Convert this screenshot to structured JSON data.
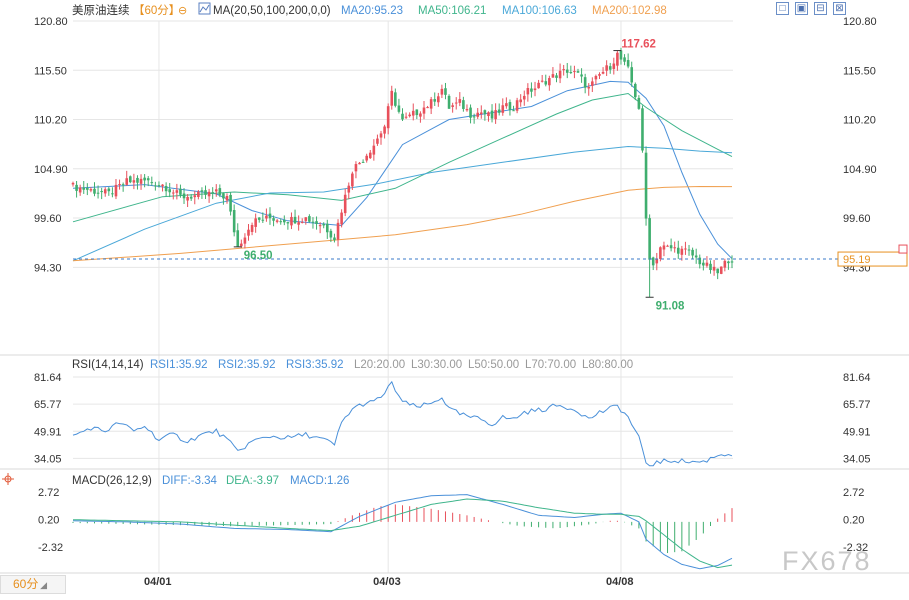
{
  "header": {
    "instrument": "美原油连续",
    "timeframe": "【60分】",
    "ma_label": "MA(20,50,100,200,0,0)",
    "ma_values": [
      {
        "text": "MA20:95.23",
        "color": "#4a90d9"
      },
      {
        "text": "MA50:106.21",
        "color": "#3fb58c"
      },
      {
        "text": "MA100:106.63",
        "color": "#4aa8d8"
      },
      {
        "text": "MA200:102.98",
        "color": "#f0a050"
      }
    ]
  },
  "window_controls": [
    "□",
    "▣",
    "⊟",
    "⊠"
  ],
  "timeframe_button": "60分",
  "watermark": "FX678",
  "colors": {
    "up": "#e8505b",
    "down": "#3fae6e",
    "grid": "#e6e6e6",
    "axis_text": "#333333",
    "price_line": "#3a78c8",
    "last_price_box": "#e7901f"
  },
  "chart_data": [
    {
      "type": "candlestick",
      "panel": "price",
      "ylim": [
        91.0,
        120.8
      ],
      "y_ticks": [
        "120.80",
        "115.50",
        "110.20",
        "104.90",
        "99.60",
        "94.30"
      ],
      "x_labels": [
        {
          "label": "04/01",
          "bar": 24
        },
        {
          "label": "04/03",
          "bar": 88
        },
        {
          "label": "04/08",
          "bar": 153
        }
      ],
      "bar_count": 185,
      "keyframes": [
        [
          0,
          103.0
        ],
        [
          5,
          102.6
        ],
        [
          10,
          102.2
        ],
        [
          15,
          103.5
        ],
        [
          20,
          103.6
        ],
        [
          25,
          103.2
        ],
        [
          30,
          101.9
        ],
        [
          35,
          102.0
        ],
        [
          40,
          102.3
        ],
        [
          43,
          101.8
        ],
        [
          46,
          96.5
        ],
        [
          50,
          99.2
        ],
        [
          55,
          99.6
        ],
        [
          60,
          99.4
        ],
        [
          65,
          99.6
        ],
        [
          70,
          98.8
        ],
        [
          73,
          97.5
        ],
        [
          75,
          100.5
        ],
        [
          78,
          104.8
        ],
        [
          81,
          106.0
        ],
        [
          84,
          107.5
        ],
        [
          87,
          109.5
        ],
        [
          89,
          113.0
        ],
        [
          92,
          110.0
        ],
        [
          96,
          111.0
        ],
        [
          100,
          112.0
        ],
        [
          103,
          113.5
        ],
        [
          105,
          111.5
        ],
        [
          108,
          112.0
        ],
        [
          111,
          110.8
        ],
        [
          114,
          111.0
        ],
        [
          117,
          110.4
        ],
        [
          120,
          111.5
        ],
        [
          123,
          111.6
        ],
        [
          126,
          113.0
        ],
        [
          129,
          113.6
        ],
        [
          132,
          114.4
        ],
        [
          135,
          115.0
        ],
        [
          138,
          115.5
        ],
        [
          141,
          115.0
        ],
        [
          144,
          113.5
        ],
        [
          147,
          115.0
        ],
        [
          150,
          116.0
        ],
        [
          152,
          117.2
        ],
        [
          155,
          115.5
        ],
        [
          158,
          111.5
        ],
        [
          159,
          106.5
        ],
        [
          160,
          99.5
        ],
        [
          161,
          95.5
        ],
        [
          162,
          94.5
        ],
        [
          164,
          96.5
        ],
        [
          168,
          96.3
        ],
        [
          172,
          95.9
        ],
        [
          176,
          94.6
        ],
        [
          180,
          93.7
        ],
        [
          183,
          95.2
        ],
        [
          184,
          95.19
        ]
      ],
      "high_label": {
        "value": "117.62",
        "bar": 152
      },
      "low_labels": [
        {
          "value": "96.50",
          "bar": 46
        },
        {
          "value": "91.08",
          "bar": 161
        }
      ],
      "last_price": "95.19",
      "series": [
        {
          "name": "MA20",
          "color": "#4a90d9",
          "points": [
            [
              0,
              102.8
            ],
            [
              20,
              103.2
            ],
            [
              40,
              102.2
            ],
            [
              50,
              100.4
            ],
            [
              60,
              99.3
            ],
            [
              75,
              98.8
            ],
            [
              82,
              101.8
            ],
            [
              92,
              107.5
            ],
            [
              105,
              110.2
            ],
            [
              118,
              111.0
            ],
            [
              128,
              111.6
            ],
            [
              138,
              113.3
            ],
            [
              150,
              114.3
            ],
            [
              155,
              114.2
            ],
            [
              160,
              112.5
            ],
            [
              165,
              109.5
            ],
            [
              170,
              104.5
            ],
            [
              175,
              100.0
            ],
            [
              180,
              96.8
            ],
            [
              184,
              95.23
            ]
          ]
        },
        {
          "name": "MA50",
          "color": "#3fb58c",
          "points": [
            [
              0,
              99.2
            ],
            [
              25,
              101.9
            ],
            [
              45,
              102.4
            ],
            [
              60,
              102.1
            ],
            [
              75,
              101.5
            ],
            [
              90,
              102.8
            ],
            [
              105,
              105.6
            ],
            [
              120,
              108.2
            ],
            [
              135,
              110.8
            ],
            [
              145,
              112.3
            ],
            [
              155,
              113.0
            ],
            [
              160,
              111.5
            ],
            [
              170,
              109.0
            ],
            [
              180,
              107.0
            ],
            [
              184,
              106.21
            ]
          ]
        },
        {
          "name": "MA100",
          "color": "#4aa8d8",
          "points": [
            [
              0,
              95.0
            ],
            [
              20,
              98.4
            ],
            [
              40,
              101.2
            ],
            [
              55,
              102.3
            ],
            [
              70,
              102.4
            ],
            [
              85,
              103.3
            ],
            [
              100,
              104.5
            ],
            [
              120,
              105.6
            ],
            [
              140,
              106.7
            ],
            [
              155,
              107.3
            ],
            [
              165,
              107.1
            ],
            [
              175,
              106.8
            ],
            [
              184,
              106.63
            ]
          ]
        },
        {
          "name": "MA200",
          "color": "#f0a050",
          "points": [
            [
              0,
              95.0
            ],
            [
              30,
              95.8
            ],
            [
              60,
              96.8
            ],
            [
              90,
              97.8
            ],
            [
              110,
              98.9
            ],
            [
              125,
              100.0
            ],
            [
              140,
              101.4
            ],
            [
              155,
              102.6
            ],
            [
              165,
              102.9
            ],
            [
              175,
              103.0
            ],
            [
              184,
              102.98
            ]
          ]
        }
      ]
    },
    {
      "type": "line",
      "panel": "rsi",
      "title": "RSI(14,14,14)",
      "legend": [
        {
          "text": "RSI1:35.92",
          "color": "#4a90d9"
        },
        {
          "text": "RSI2:35.92",
          "color": "#4a90d9"
        },
        {
          "text": "RSI3:35.92",
          "color": "#4a90d9"
        },
        {
          "text": "L20:20.00",
          "color": "#999999"
        },
        {
          "text": "L30:30.00",
          "color": "#999999"
        },
        {
          "text": "L50:50.00",
          "color": "#999999"
        },
        {
          "text": "L70:70.00",
          "color": "#999999"
        },
        {
          "text": "L80:80.00",
          "color": "#999999"
        }
      ],
      "ylim": [
        29.0,
        84.0
      ],
      "y_ticks": [
        "81.64",
        "65.77",
        "49.91",
        "34.05"
      ],
      "series": [
        {
          "name": "RSI",
          "color": "#4a90d9",
          "points": [
            [
              0,
              47
            ],
            [
              5,
              52
            ],
            [
              9,
              50
            ],
            [
              13,
              55
            ],
            [
              17,
              50
            ],
            [
              20,
              53
            ],
            [
              24,
              45
            ],
            [
              28,
              48
            ],
            [
              32,
              44
            ],
            [
              36,
              48
            ],
            [
              40,
              50
            ],
            [
              43,
              45
            ],
            [
              46,
              38
            ],
            [
              50,
              44
            ],
            [
              55,
              47
            ],
            [
              60,
              46
            ],
            [
              65,
              48
            ],
            [
              70,
              45
            ],
            [
              73,
              42
            ],
            [
              75,
              55
            ],
            [
              78,
              63
            ],
            [
              81,
              66
            ],
            [
              84,
              67
            ],
            [
              87,
              72
            ],
            [
              89,
              78
            ],
            [
              92,
              67
            ],
            [
              96,
              64
            ],
            [
              100,
              66
            ],
            [
              103,
              70
            ],
            [
              105,
              63
            ],
            [
              108,
              60
            ],
            [
              111,
              58
            ],
            [
              114,
              57
            ],
            [
              117,
              54
            ],
            [
              120,
              58
            ],
            [
              123,
              57
            ],
            [
              126,
              61
            ],
            [
              129,
              62
            ],
            [
              132,
              63
            ],
            [
              135,
              65
            ],
            [
              138,
              64
            ],
            [
              141,
              62
            ],
            [
              144,
              57
            ],
            [
              147,
              61
            ],
            [
              150,
              63
            ],
            [
              152,
              65
            ],
            [
              155,
              58
            ],
            [
              158,
              46
            ],
            [
              159,
              38
            ],
            [
              160,
              32
            ],
            [
              161,
              30
            ],
            [
              162,
              31
            ],
            [
              164,
              32
            ],
            [
              168,
              33
            ],
            [
              172,
              32
            ],
            [
              176,
              32
            ],
            [
              180,
              36
            ],
            [
              183,
              37
            ],
            [
              184,
              35.9
            ]
          ]
        }
      ]
    },
    {
      "type": "bar+line",
      "panel": "macd",
      "title": "MACD(26,12,9)",
      "legend": [
        {
          "text": "DIFF:-3.34",
          "color": "#4a90d9"
        },
        {
          "text": "DEA:-3.97",
          "color": "#3fb58c"
        },
        {
          "text": "MACD:1.26",
          "color": "#4a90d9"
        }
      ],
      "ylim": [
        -4.6,
        3.2
      ],
      "y_ticks": [
        "2.72",
        "0.20",
        "-2.32"
      ],
      "diff": [
        [
          0,
          0.1
        ],
        [
          15,
          0.0
        ],
        [
          30,
          -0.2
        ],
        [
          45,
          -0.6
        ],
        [
          60,
          -0.7
        ],
        [
          72,
          -0.9
        ],
        [
          80,
          0.5
        ],
        [
          90,
          1.8
        ],
        [
          100,
          2.4
        ],
        [
          110,
          2.5
        ],
        [
          120,
          1.6
        ],
        [
          130,
          0.6
        ],
        [
          140,
          0.4
        ],
        [
          148,
          0.7
        ],
        [
          153,
          0.8
        ],
        [
          158,
          0.0
        ],
        [
          160,
          -1.6
        ],
        [
          165,
          -3.0
        ],
        [
          170,
          -3.9
        ],
        [
          175,
          -4.3
        ],
        [
          180,
          -4.0
        ],
        [
          184,
          -3.34
        ]
      ],
      "dea": [
        [
          0,
          0.2
        ],
        [
          15,
          0.1
        ],
        [
          30,
          0.0
        ],
        [
          45,
          -0.3
        ],
        [
          60,
          -0.6
        ],
        [
          72,
          -0.8
        ],
        [
          80,
          -0.4
        ],
        [
          90,
          0.6
        ],
        [
          100,
          1.6
        ],
        [
          110,
          2.1
        ],
        [
          120,
          1.9
        ],
        [
          130,
          1.3
        ],
        [
          140,
          0.8
        ],
        [
          148,
          0.7
        ],
        [
          153,
          0.7
        ],
        [
          158,
          0.5
        ],
        [
          160,
          0.1
        ],
        [
          165,
          -1.2
        ],
        [
          170,
          -2.5
        ],
        [
          175,
          -3.6
        ],
        [
          180,
          -4.2
        ],
        [
          184,
          -3.97
        ]
      ],
      "histogram": [
        [
          0,
          -0.1
        ],
        [
          15,
          -0.2
        ],
        [
          30,
          -0.3
        ],
        [
          45,
          -0.4
        ],
        [
          60,
          -0.3
        ],
        [
          72,
          -0.2
        ],
        [
          78,
          0.6
        ],
        [
          85,
          1.4
        ],
        [
          90,
          1.6
        ],
        [
          100,
          1.2
        ],
        [
          110,
          0.6
        ],
        [
          118,
          0.0
        ],
        [
          125,
          -0.4
        ],
        [
          135,
          -0.6
        ],
        [
          145,
          -0.2
        ],
        [
          150,
          0.1
        ],
        [
          153,
          0.1
        ],
        [
          158,
          -0.6
        ],
        [
          160,
          -1.8
        ],
        [
          165,
          -2.9
        ],
        [
          170,
          -2.7
        ],
        [
          175,
          -1.4
        ],
        [
          180,
          0.3
        ],
        [
          184,
          1.26
        ]
      ]
    }
  ]
}
